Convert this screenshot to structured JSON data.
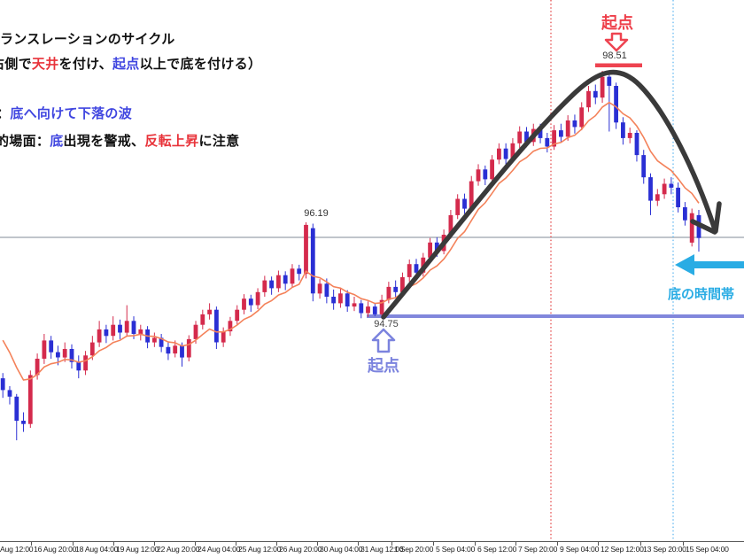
{
  "header": {
    "lines": [
      {
        "segments": [
          {
            "t": "ランスレーションのサイクル",
            "c": "k"
          }
        ]
      },
      {
        "segments": [
          {
            "t": "右側で",
            "c": "k"
          },
          {
            "t": "天井",
            "c": "r"
          },
          {
            "t": "を付け、",
            "c": "k"
          },
          {
            "t": "起点",
            "c": "b"
          },
          {
            "t": "以上で底を付ける）",
            "c": "k"
          }
        ]
      },
      {
        "segments": [
          {
            "t": "：",
            "c": "k"
          },
          {
            "t": "底へ向けて下落の波",
            "c": "b"
          }
        ]
      },
      {
        "segments": [
          {
            "t": "的場面：",
            "c": "k"
          },
          {
            "t": "底",
            "c": "b"
          },
          {
            "t": "出現を警戒、",
            "c": "k"
          },
          {
            "t": "反転上昇",
            "c": "r"
          },
          {
            "t": "に注意",
            "c": "k"
          }
        ]
      }
    ]
  },
  "labels": {
    "origin_top": "起点",
    "peak_price": "98.51",
    "swing_price": "96.19",
    "low_price": "94.75",
    "origin_bottom": "起点",
    "bottom_zone": "底の時間帯"
  },
  "colors": {
    "candle_up": "#d42a4c",
    "candle_down": "#2a2fd4",
    "ma_line": "#f4825a",
    "accent_red": "#ee4350",
    "accent_periwinkle": "#7b83de",
    "accent_cyan": "#29ace4",
    "arc_black": "#3a3a3a",
    "dotted_red": "#e34b4b",
    "dotted_blue": "#66b9f0",
    "current_price_line": "#9aa2ac",
    "header_red": "#e8333a",
    "header_blue": "#4046e0"
  },
  "chart_data": {
    "type": "candlestick",
    "x_axis_labels": [
      "Aug 12:00",
      "16 Aug 20:00",
      "18 Aug 04:00",
      "19 Aug 12:00",
      "22 Aug 20:00",
      "24 Aug 04:00",
      "25 Aug 12:00",
      "26 Aug 20:00",
      "30 Aug 04:00",
      "31 Aug 12:00",
      "1 Sep 20:00",
      "5 Sep 04:00",
      "6 Sep 12:00",
      "7 Sep 20:00",
      "9 Sep 04:00",
      "12 Sep 12:00",
      "13 Sep 20:00",
      "15 Sep 04:00"
    ],
    "price_marks": {
      "peak_high": 98.51,
      "swing_high": 96.19,
      "origin_low": 94.75,
      "current_price_level": 95.96
    },
    "ma": {
      "kind": "ema",
      "alpha": 0.22,
      "seed": 94.6
    },
    "ohlc": [
      [
        93.8,
        93.88,
        93.5,
        93.62
      ],
      [
        93.62,
        93.68,
        93.4,
        93.52
      ],
      [
        93.52,
        93.56,
        92.85,
        93.15
      ],
      [
        93.15,
        93.28,
        92.98,
        93.1
      ],
      [
        93.1,
        93.92,
        93.04,
        93.85
      ],
      [
        93.85,
        94.18,
        93.78,
        94.1
      ],
      [
        94.1,
        94.48,
        94.02,
        94.38
      ],
      [
        94.38,
        94.45,
        94.1,
        94.2
      ],
      [
        94.2,
        94.3,
        94.0,
        94.12
      ],
      [
        94.12,
        94.35,
        94.05,
        94.25
      ],
      [
        94.25,
        94.32,
        93.95,
        94.05
      ],
      [
        94.05,
        94.15,
        93.8,
        93.92
      ],
      [
        93.92,
        94.22,
        93.85,
        94.15
      ],
      [
        94.15,
        94.45,
        94.08,
        94.35
      ],
      [
        94.35,
        94.68,
        94.28,
        94.55
      ],
      [
        94.55,
        94.62,
        94.34,
        94.45
      ],
      [
        94.45,
        94.75,
        94.38,
        94.62
      ],
      [
        94.62,
        94.7,
        94.4,
        94.5
      ],
      [
        94.5,
        94.92,
        94.44,
        94.68
      ],
      [
        94.68,
        94.75,
        94.4,
        94.48
      ],
      [
        94.48,
        94.62,
        94.38,
        94.55
      ],
      [
        94.55,
        94.6,
        94.26,
        94.35
      ],
      [
        94.35,
        94.5,
        94.28,
        94.42
      ],
      [
        94.42,
        94.48,
        94.2,
        94.28
      ],
      [
        94.28,
        94.36,
        94.08,
        94.18
      ],
      [
        94.18,
        94.38,
        94.12,
        94.3
      ],
      [
        94.3,
        94.35,
        93.98,
        94.12
      ],
      [
        94.12,
        94.46,
        94.06,
        94.4
      ],
      [
        94.4,
        94.68,
        94.33,
        94.62
      ],
      [
        94.62,
        94.85,
        94.55,
        94.78
      ],
      [
        94.78,
        94.95,
        94.7,
        94.85
      ],
      [
        94.85,
        94.9,
        94.25,
        94.35
      ],
      [
        94.35,
        94.58,
        94.28,
        94.52
      ],
      [
        94.52,
        94.74,
        94.45,
        94.68
      ],
      [
        94.68,
        94.92,
        94.62,
        94.85
      ],
      [
        94.85,
        95.09,
        94.78,
        95.02
      ],
      [
        95.02,
        95.08,
        94.82,
        94.92
      ],
      [
        94.92,
        95.18,
        94.86,
        95.12
      ],
      [
        95.12,
        95.37,
        95.05,
        95.3
      ],
      [
        95.3,
        95.36,
        95.08,
        95.18
      ],
      [
        95.18,
        95.45,
        95.12,
        95.38
      ],
      [
        95.38,
        95.44,
        95.15,
        95.25
      ],
      [
        95.25,
        95.55,
        95.19,
        95.48
      ],
      [
        95.48,
        95.54,
        95.3,
        95.4
      ],
      [
        95.4,
        96.19,
        95.33,
        96.15
      ],
      [
        96.1,
        96.17,
        94.98,
        95.1
      ],
      [
        95.1,
        95.32,
        95.02,
        95.25
      ],
      [
        95.25,
        95.33,
        94.95,
        95.05
      ],
      [
        95.05,
        95.16,
        94.85,
        94.95
      ],
      [
        94.95,
        95.18,
        94.88,
        95.1
      ],
      [
        95.1,
        95.15,
        94.82,
        94.9
      ],
      [
        94.9,
        95.05,
        94.83,
        94.95
      ],
      [
        94.95,
        95.0,
        94.72,
        94.8
      ],
      [
        94.8,
        94.98,
        94.74,
        94.9
      ],
      [
        94.9,
        94.95,
        94.75,
        94.78
      ],
      [
        94.78,
        95.08,
        94.75,
        95.0
      ],
      [
        95.0,
        95.28,
        94.95,
        95.2
      ],
      [
        95.2,
        95.3,
        95.04,
        95.12
      ],
      [
        95.12,
        95.42,
        95.06,
        95.35
      ],
      [
        95.35,
        95.62,
        95.28,
        95.55
      ],
      [
        95.55,
        95.63,
        95.34,
        95.42
      ],
      [
        95.42,
        95.72,
        95.36,
        95.65
      ],
      [
        95.65,
        95.95,
        95.58,
        95.88
      ],
      [
        95.88,
        95.96,
        95.66,
        95.75
      ],
      [
        95.75,
        96.08,
        95.7,
        96.0
      ],
      [
        96.0,
        96.38,
        95.94,
        96.3
      ],
      [
        96.3,
        96.62,
        96.24,
        96.55
      ],
      [
        96.55,
        96.63,
        96.32,
        96.4
      ],
      [
        96.4,
        96.9,
        96.34,
        96.82
      ],
      [
        96.82,
        97.08,
        96.75,
        97.0
      ],
      [
        97.0,
        97.06,
        96.76,
        96.85
      ],
      [
        96.85,
        97.22,
        96.79,
        97.15
      ],
      [
        97.15,
        97.4,
        97.08,
        97.32
      ],
      [
        97.32,
        97.4,
        97.08,
        97.16
      ],
      [
        97.16,
        97.48,
        97.11,
        97.4
      ],
      [
        97.4,
        97.66,
        97.33,
        97.58
      ],
      [
        97.58,
        97.65,
        97.34,
        97.42
      ],
      [
        97.42,
        97.7,
        97.36,
        97.62
      ],
      [
        97.62,
        97.7,
        97.4,
        97.48
      ],
      [
        97.48,
        97.56,
        97.26,
        97.35
      ],
      [
        97.35,
        97.68,
        97.3,
        97.6
      ],
      [
        97.6,
        97.7,
        97.42,
        97.5
      ],
      [
        97.5,
        97.83,
        97.44,
        97.75
      ],
      [
        97.75,
        97.84,
        97.55,
        97.65
      ],
      [
        97.65,
        98.03,
        97.6,
        97.95
      ],
      [
        97.95,
        98.28,
        97.88,
        98.2
      ],
      [
        98.2,
        98.3,
        98.0,
        98.1
      ],
      [
        98.1,
        98.51,
        98.02,
        98.42
      ],
      [
        98.42,
        98.46,
        97.58,
        98.28
      ],
      [
        98.28,
        98.33,
        97.62,
        97.72
      ],
      [
        97.72,
        97.8,
        97.38,
        97.48
      ],
      [
        97.48,
        97.64,
        97.4,
        97.56
      ],
      [
        97.56,
        97.6,
        97.12,
        97.22
      ],
      [
        97.22,
        97.3,
        96.78,
        96.88
      ],
      [
        96.88,
        96.94,
        96.3,
        96.52
      ],
      [
        96.52,
        96.7,
        96.44,
        96.62
      ],
      [
        96.62,
        96.86,
        96.55,
        96.78
      ],
      [
        96.78,
        96.88,
        96.62,
        96.72
      ],
      [
        96.72,
        96.8,
        96.34,
        96.42
      ],
      [
        96.42,
        96.5,
        96.14,
        96.22
      ],
      [
        95.88,
        96.4,
        95.82,
        96.33
      ],
      [
        96.3,
        96.38,
        95.74,
        95.95
      ]
    ]
  }
}
